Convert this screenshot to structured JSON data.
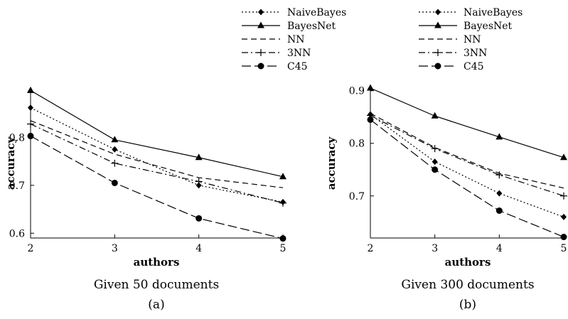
{
  "legend": [
    {
      "name": "NaiveBayes",
      "dash": "2,3",
      "marker": "diamond"
    },
    {
      "name": "BayesNet",
      "dash": "",
      "marker": "triangle"
    },
    {
      "name": "NN",
      "dash": "8,5",
      "marker": "none"
    },
    {
      "name": "3NN",
      "dash": "9,4,2,4",
      "marker": "plus"
    },
    {
      "name": "C45",
      "dash": "13,5",
      "marker": "circle"
    }
  ],
  "chart_data": [
    {
      "type": "line",
      "title": "Given 50 documents",
      "subtitle": "(a)",
      "xlabel": "authors",
      "ylabel": "accuracy",
      "x": [
        2,
        3,
        4,
        5
      ],
      "xlim": [
        2,
        5
      ],
      "ylim": [
        0.59,
        0.9
      ],
      "xticks": [
        "2",
        "3",
        "4",
        "5"
      ],
      "yticks": [
        0.6,
        0.7,
        0.8
      ],
      "ytick_labels": [
        "0.6",
        "0.7",
        "0.8"
      ],
      "series": [
        {
          "name": "NaiveBayes",
          "values": [
            0.862,
            0.775,
            0.7,
            0.665
          ]
        },
        {
          "name": "BayesNet",
          "values": [
            0.898,
            0.795,
            0.758,
            0.718
          ]
        },
        {
          "name": "NN",
          "values": [
            0.835,
            0.765,
            0.716,
            0.695
          ]
        },
        {
          "name": "3NN",
          "values": [
            0.828,
            0.746,
            0.708,
            0.663
          ]
        },
        {
          "name": "C45",
          "values": [
            0.803,
            0.705,
            0.631,
            0.589
          ]
        }
      ]
    },
    {
      "type": "line",
      "title": "Given 300 documents",
      "subtitle": "(b)",
      "xlabel": "authors",
      "ylabel": "accuracy",
      "x": [
        2,
        3,
        4,
        5
      ],
      "xlim": [
        2,
        5
      ],
      "ylim": [
        0.62,
        0.905
      ],
      "xticks": [
        "2",
        "3",
        "4",
        "5"
      ],
      "yticks": [
        0.7,
        0.8,
        0.9
      ],
      "ytick_labels": [
        "0.7",
        "0.8",
        "0.9"
      ],
      "series": [
        {
          "name": "NaiveBayes",
          "values": [
            0.855,
            0.765,
            0.705,
            0.66
          ]
        },
        {
          "name": "BayesNet",
          "values": [
            0.905,
            0.852,
            0.812,
            0.773
          ]
        },
        {
          "name": "NN",
          "values": [
            0.857,
            0.792,
            0.743,
            0.715
          ]
        },
        {
          "name": "3NN",
          "values": [
            0.853,
            0.79,
            0.74,
            0.7
          ]
        },
        {
          "name": "C45",
          "values": [
            0.845,
            0.75,
            0.672,
            0.622
          ]
        }
      ]
    }
  ]
}
